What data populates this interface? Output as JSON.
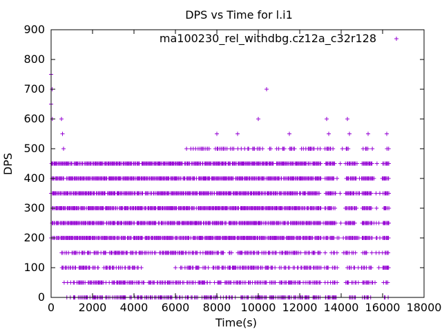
{
  "chart_data": {
    "type": "scatter",
    "title": "DPS vs Time for l.i1",
    "xlabel": "Time(s)",
    "ylabel": "DPS",
    "xlim": [
      0,
      18000
    ],
    "ylim": [
      0,
      900
    ],
    "xticks": [
      "0",
      "2000",
      "4000",
      "6000",
      "8000",
      "10000",
      "12000",
      "14000",
      "16000",
      "18000"
    ],
    "yticks": [
      "0",
      "100",
      "200",
      "300",
      "400",
      "500",
      "600",
      "700",
      "800",
      "900"
    ],
    "x_tick_values": [
      0,
      2000,
      4000,
      6000,
      8000,
      10000,
      12000,
      14000,
      16000,
      18000
    ],
    "y_tick_values": [
      0,
      100,
      200,
      300,
      400,
      500,
      600,
      700,
      800,
      900
    ],
    "grid": false,
    "legend": {
      "position": "top-right",
      "entries": [
        {
          "name": "ma100230_rel_withdbg.cz12a_c32r128",
          "marker": "+",
          "color": "#9400d3"
        }
      ]
    },
    "series_color": "#9400d3",
    "bands": [
      {
        "y": 0,
        "ranges": [
          [
            700,
            16300
          ]
        ]
      },
      {
        "y": 50,
        "ranges": [
          [
            500,
            16300
          ]
        ]
      },
      {
        "y": 100,
        "ranges": [
          [
            500,
            4400
          ],
          [
            6000,
            16300
          ]
        ]
      },
      {
        "y": 150,
        "ranges": [
          [
            500,
            16300
          ]
        ]
      },
      {
        "y": 200,
        "ranges": [
          [
            0,
            16300
          ]
        ]
      },
      {
        "y": 250,
        "ranges": [
          [
            0,
            16300
          ]
        ]
      },
      {
        "y": 300,
        "ranges": [
          [
            0,
            16300
          ]
        ]
      },
      {
        "y": 350,
        "ranges": [
          [
            0,
            16300
          ]
        ]
      },
      {
        "y": 400,
        "ranges": [
          [
            0,
            16300
          ]
        ]
      },
      {
        "y": 450,
        "ranges": [
          [
            0,
            16300
          ]
        ]
      },
      {
        "y": 500,
        "ranges": [
          [
            6400,
            16300
          ]
        ]
      }
    ],
    "band_gaps": [
      [
        13000,
        13200
      ],
      [
        13700,
        14200
      ],
      [
        14700,
        15000
      ],
      [
        15500,
        16000
      ]
    ],
    "sparse_points": [
      {
        "x": 0,
        "y": 750
      },
      {
        "x": 50,
        "y": 700
      },
      {
        "x": 0,
        "y": 650
      },
      {
        "x": 60,
        "y": 600
      },
      {
        "x": 500,
        "y": 600
      },
      {
        "x": 550,
        "y": 550
      },
      {
        "x": 600,
        "y": 500
      },
      {
        "x": 1000,
        "y": 450
      },
      {
        "x": 3000,
        "y": 450
      },
      {
        "x": 3300,
        "y": 450
      },
      {
        "x": 4500,
        "y": 450
      },
      {
        "x": 10000,
        "y": 600
      },
      {
        "x": 10400,
        "y": 700
      },
      {
        "x": 13300,
        "y": 600
      },
      {
        "x": 14300,
        "y": 600
      },
      {
        "x": 8000,
        "y": 550
      },
      {
        "x": 9000,
        "y": 550
      },
      {
        "x": 11500,
        "y": 550
      },
      {
        "x": 13400,
        "y": 550
      },
      {
        "x": 14400,
        "y": 550
      },
      {
        "x": 15300,
        "y": 550
      },
      {
        "x": 16200,
        "y": 550
      },
      {
        "x": 16700,
        "y": 870
      }
    ]
  }
}
